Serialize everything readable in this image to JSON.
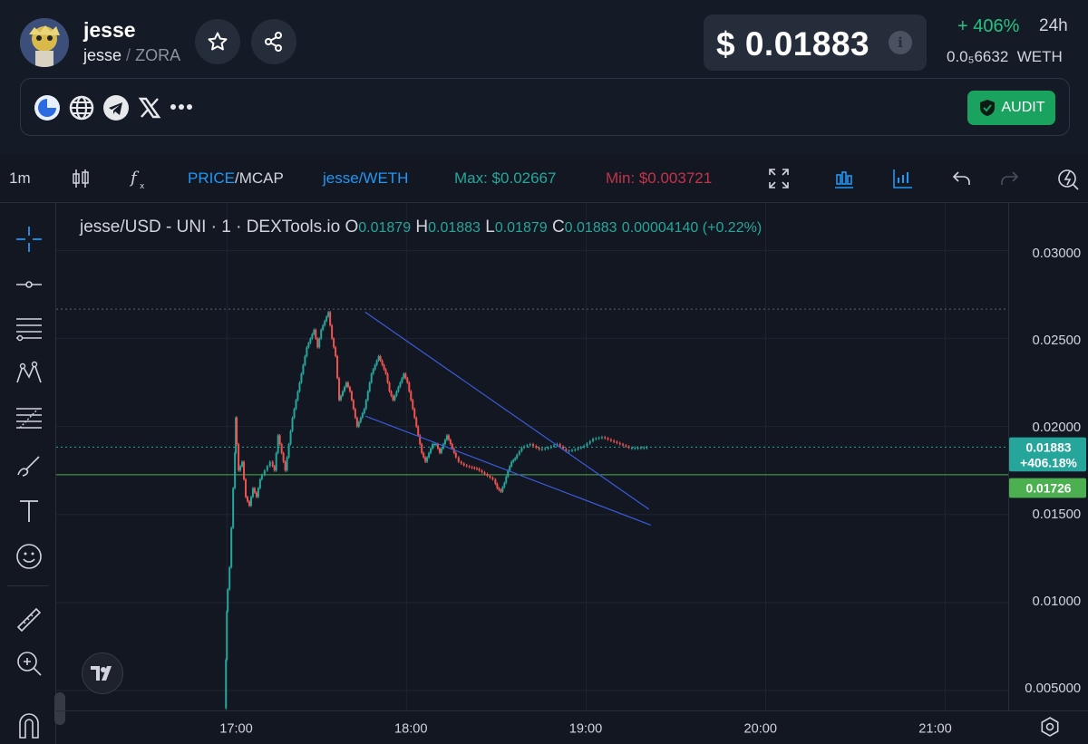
{
  "token": {
    "name": "jesse",
    "symbol": "jesse",
    "separator": "/",
    "chain": "ZORA",
    "price": "$ 0.01883",
    "change": "+ 406%",
    "change_period": "24h",
    "weth_price": "0.0₅6632",
    "weth_label": "WETH"
  },
  "header_buttons": {
    "favorite": "star-icon",
    "share": "share-icon"
  },
  "social_links": [
    "website-icon",
    "globe-icon",
    "telegram-icon",
    "x-icon",
    "more-icon"
  ],
  "audit_label": "AUDIT",
  "toolbar": {
    "interval": "1m",
    "price_label": "PRICE",
    "slash": "/",
    "mcap_label": "MCAP",
    "pair": "jesse/WETH",
    "max": "Max: $0.02667",
    "min": "Min: $0.003721"
  },
  "legend": {
    "title": "jesse/USD - UNI · 1 · DEXTools.io",
    "o_key": "O",
    "o_val": "0.01879",
    "h_key": "H",
    "h_val": "0.01883",
    "l_key": "L",
    "l_val": "0.01879",
    "c_key": "C",
    "c_val": "0.01883",
    "change": "0.00004140 (+0.22%)"
  },
  "price_tag": {
    "price": "0.01883",
    "pct": "+406.18%",
    "line": "0.01726"
  },
  "colors": {
    "up": "#26a69a",
    "down": "#ef5350",
    "accent": "#2196f3",
    "green_line": "#4caf50"
  },
  "chart_data": {
    "type": "candlestick",
    "x_ticks": [
      "17:00",
      "18:00",
      "19:00",
      "20:00",
      "21:00"
    ],
    "y_ticks": [
      "0.03000",
      "0.02500",
      "0.02000",
      "0.01500",
      "0.01000",
      "0.005000"
    ],
    "series": [
      {
        "values": [
          [
            16.99,
            0.004
          ],
          [
            17.0,
            0.0095
          ],
          [
            17.02,
            0.012
          ],
          [
            17.04,
            0.0165
          ],
          [
            17.05,
            0.0205
          ],
          [
            17.07,
            0.0175
          ],
          [
            17.09,
            0.018
          ],
          [
            17.11,
            0.016
          ],
          [
            17.13,
            0.0155
          ],
          [
            17.15,
            0.0165
          ],
          [
            17.17,
            0.016
          ],
          [
            17.19,
            0.017
          ],
          [
            17.22,
            0.0175
          ],
          [
            17.25,
            0.018
          ],
          [
            17.27,
            0.0175
          ],
          [
            17.29,
            0.0195
          ],
          [
            17.31,
            0.0185
          ],
          [
            17.33,
            0.0175
          ],
          [
            17.35,
            0.019
          ],
          [
            17.37,
            0.0205
          ],
          [
            17.39,
            0.0215
          ],
          [
            17.41,
            0.0225
          ],
          [
            17.43,
            0.0235
          ],
          [
            17.45,
            0.0245
          ],
          [
            17.47,
            0.025
          ],
          [
            17.49,
            0.0255
          ],
          [
            17.51,
            0.0245
          ],
          [
            17.53,
            0.0255
          ],
          [
            17.55,
            0.026
          ],
          [
            17.57,
            0.0265
          ],
          [
            17.59,
            0.025
          ],
          [
            17.61,
            0.024
          ],
          [
            17.63,
            0.0215
          ],
          [
            17.65,
            0.022
          ],
          [
            17.67,
            0.0225
          ],
          [
            17.69,
            0.022
          ],
          [
            17.71,
            0.021
          ],
          [
            17.73,
            0.02
          ],
          [
            17.75,
            0.0205
          ],
          [
            17.77,
            0.021
          ],
          [
            17.79,
            0.022
          ],
          [
            17.81,
            0.023
          ],
          [
            17.83,
            0.0235
          ],
          [
            17.85,
            0.024
          ],
          [
            17.87,
            0.0235
          ],
          [
            17.89,
            0.023
          ],
          [
            17.91,
            0.022
          ],
          [
            17.93,
            0.0215
          ],
          [
            17.95,
            0.022
          ],
          [
            17.97,
            0.0225
          ],
          [
            17.99,
            0.023
          ],
          [
            18.01,
            0.0225
          ],
          [
            18.03,
            0.0215
          ],
          [
            18.05,
            0.0205
          ],
          [
            18.07,
            0.0195
          ],
          [
            18.09,
            0.0185
          ],
          [
            18.11,
            0.018
          ],
          [
            18.13,
            0.0185
          ],
          [
            18.15,
            0.019
          ],
          [
            18.17,
            0.019
          ],
          [
            18.19,
            0.0185
          ],
          [
            18.21,
            0.019
          ],
          [
            18.23,
            0.0195
          ],
          [
            18.25,
            0.019
          ],
          [
            18.27,
            0.0185
          ],
          [
            18.3,
            0.018
          ],
          [
            18.33,
            0.0178
          ],
          [
            18.36,
            0.0177
          ],
          [
            18.4,
            0.0176
          ],
          [
            18.43,
            0.0174
          ],
          [
            18.46,
            0.0172
          ],
          [
            18.49,
            0.017
          ],
          [
            18.51,
            0.0165
          ],
          [
            18.53,
            0.0163
          ],
          [
            18.55,
            0.0168
          ],
          [
            18.57,
            0.0175
          ],
          [
            18.59,
            0.018
          ],
          [
            18.61,
            0.0182
          ],
          [
            18.65,
            0.0188
          ],
          [
            18.7,
            0.019
          ],
          [
            18.75,
            0.0187
          ],
          [
            18.8,
            0.0188
          ],
          [
            18.85,
            0.019
          ],
          [
            18.9,
            0.0186
          ],
          [
            18.95,
            0.0187
          ],
          [
            19.0,
            0.0189
          ],
          [
            19.05,
            0.0193
          ],
          [
            19.1,
            0.0194
          ],
          [
            19.15,
            0.0192
          ],
          [
            19.2,
            0.019
          ],
          [
            19.25,
            0.0188
          ],
          [
            19.3,
            0.0188
          ],
          [
            19.35,
            0.01883
          ]
        ]
      }
    ],
    "ylim": [
      0.00387,
      0.0327
    ],
    "xlim": [
      16.05,
      21.35
    ]
  }
}
